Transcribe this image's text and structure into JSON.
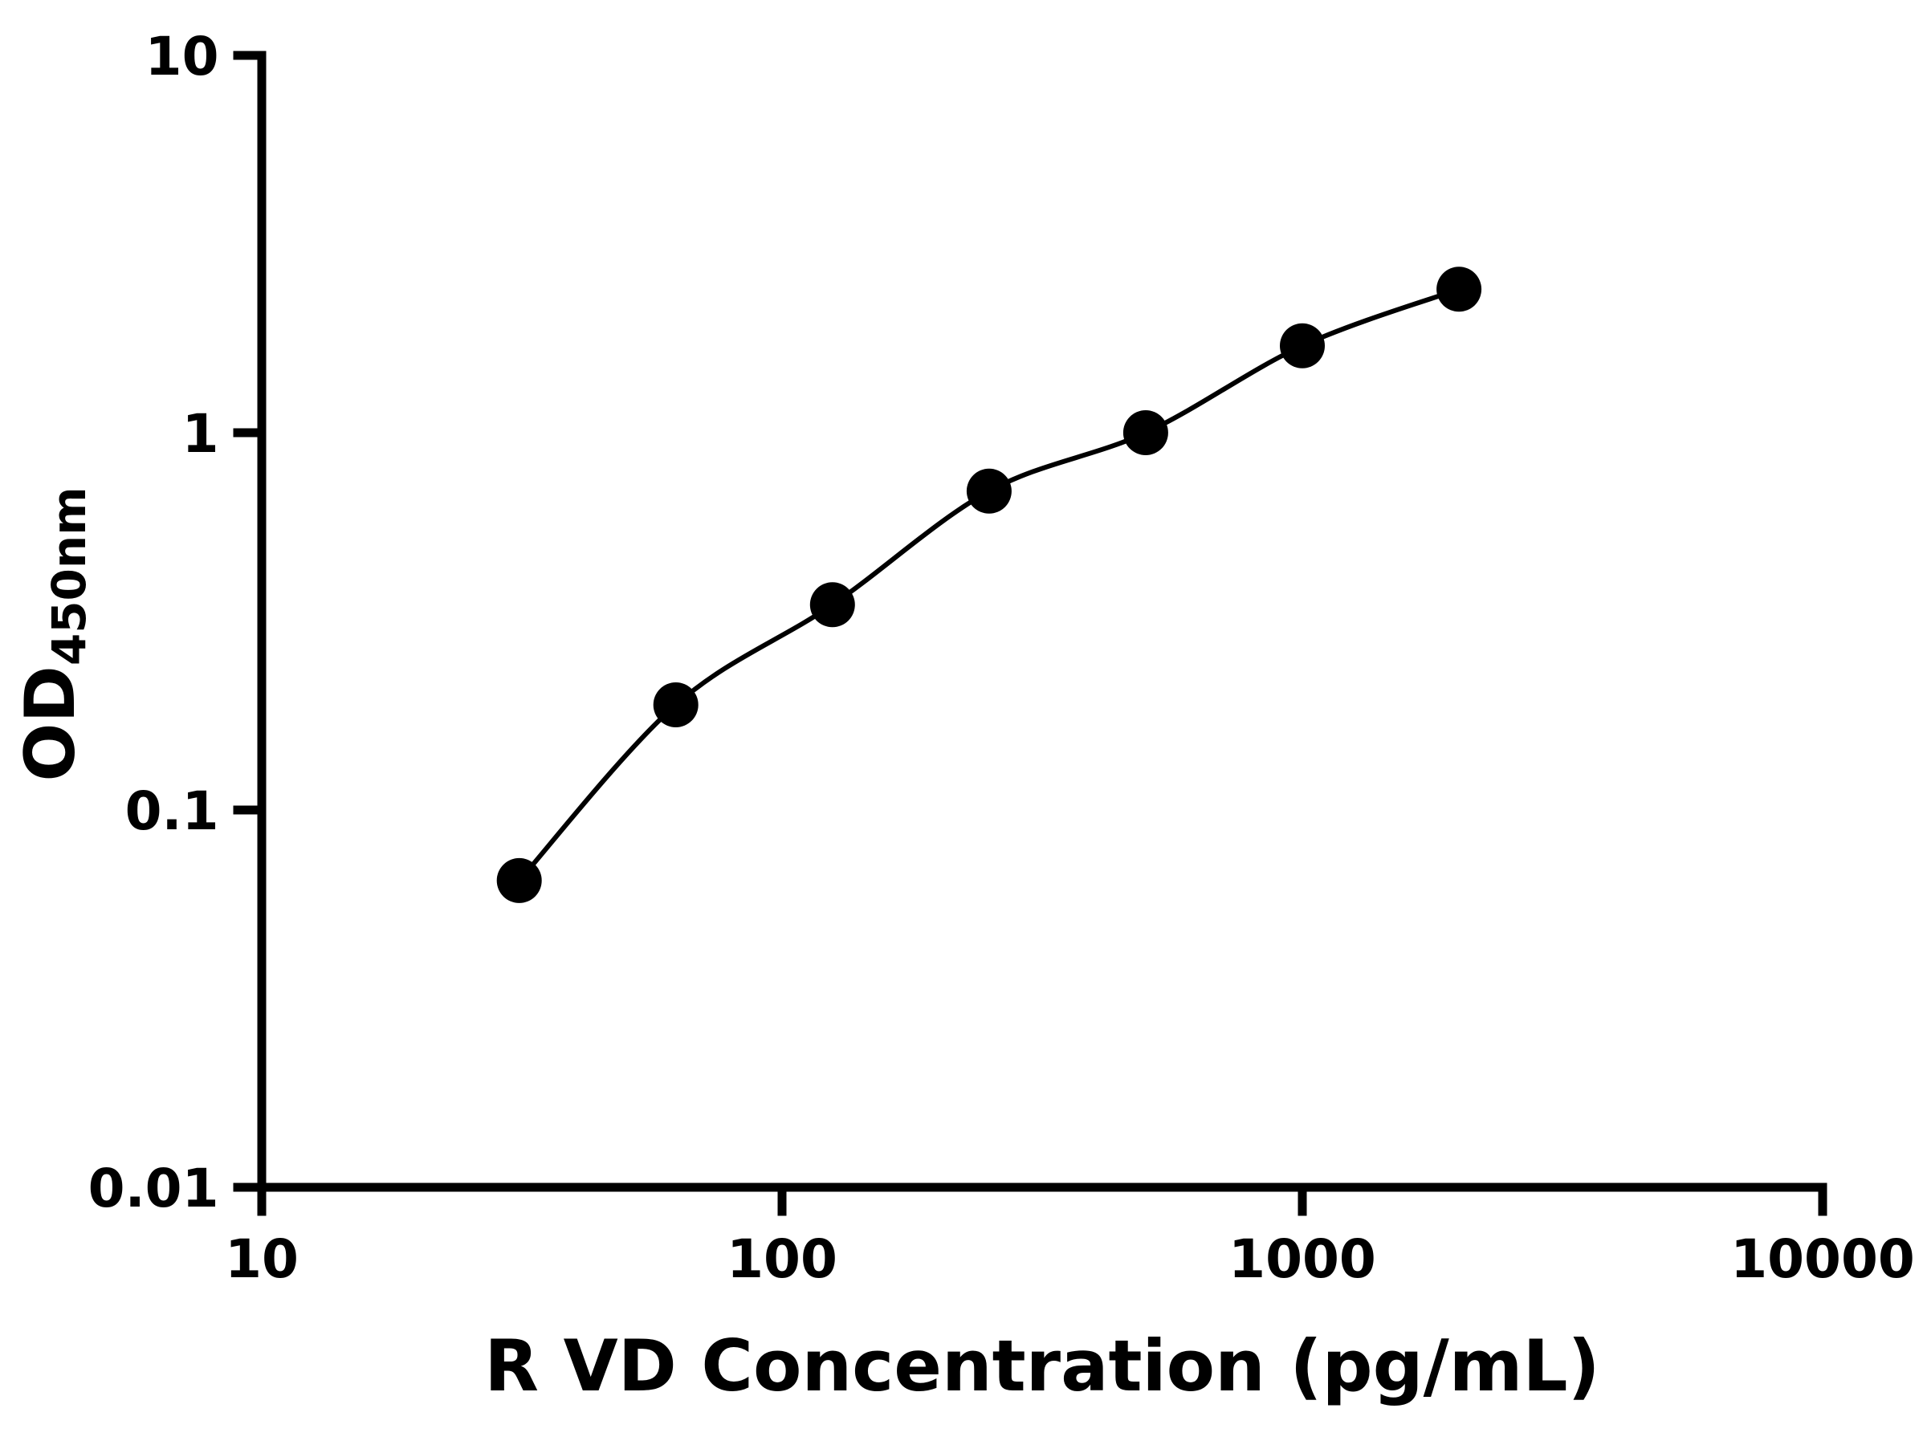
{
  "chart_data": {
    "type": "scatter",
    "subtype": "standard-curve-with-fit-line",
    "title": "",
    "xlabel": "R VD Concentration (pg/mL)",
    "ylabel_main": "OD",
    "ylabel_sub": "450nm",
    "xscale": "log",
    "yscale": "log",
    "xlim": [
      10,
      10000
    ],
    "ylim": [
      0.01,
      10
    ],
    "x_ticks": [
      "10",
      "100",
      "1000",
      "10000"
    ],
    "y_ticks": [
      "0.01",
      "0.1",
      "1",
      "10"
    ],
    "x": [
      31.25,
      62.5,
      125,
      250,
      500,
      1000,
      2000
    ],
    "y": [
      0.065,
      0.19,
      0.35,
      0.7,
      1.0,
      1.7,
      2.4
    ],
    "grid": "off",
    "legend": "none",
    "marker_shape": "circle",
    "marker_color": "#000000",
    "line_color": "#000000",
    "axis_color": "#000000",
    "background": "#ffffff"
  }
}
